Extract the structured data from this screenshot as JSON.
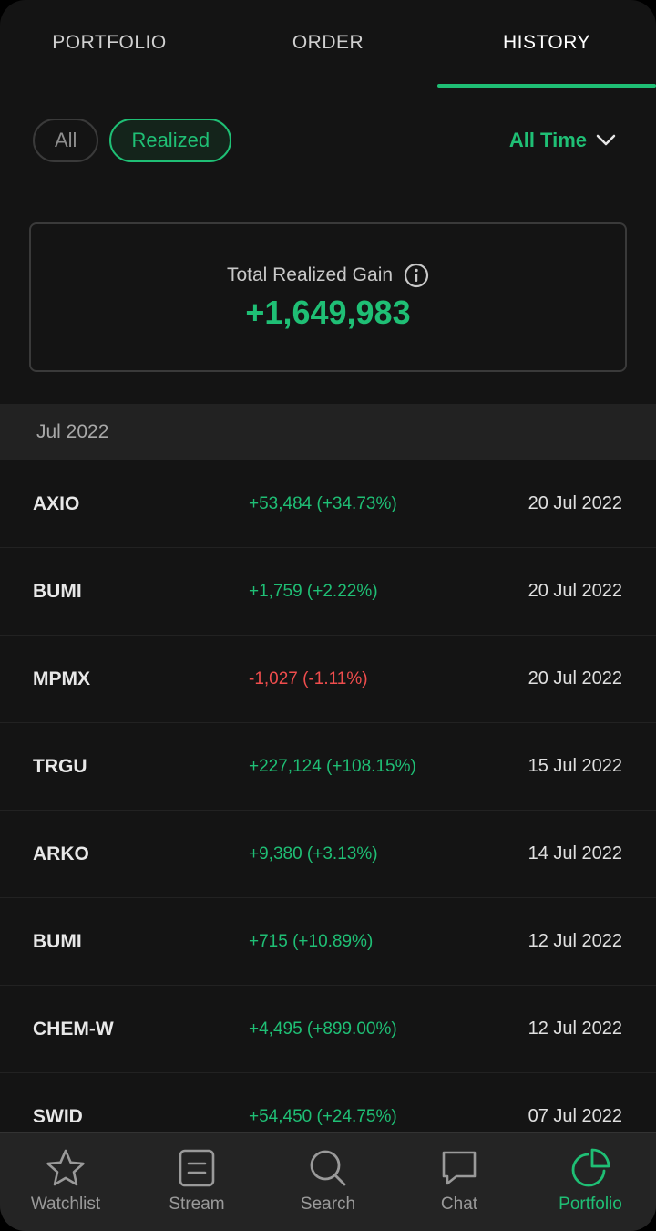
{
  "tabs": [
    {
      "label": "PORTFOLIO",
      "active": false
    },
    {
      "label": "ORDER",
      "active": false
    },
    {
      "label": "HISTORY",
      "active": true
    }
  ],
  "filters": {
    "chips": [
      {
        "label": "All",
        "selected": false
      },
      {
        "label": "Realized",
        "selected": true
      }
    ],
    "period": "All Time"
  },
  "summary": {
    "label": "Total Realized Gain",
    "value": "+1,649,983"
  },
  "section": {
    "month": "Jul 2022"
  },
  "transactions": [
    {
      "ticker": "AXIO",
      "gain": "+53,484 (+34.73%)",
      "direction": "positive",
      "date": "20 Jul 2022"
    },
    {
      "ticker": "BUMI",
      "gain": "+1,759 (+2.22%)",
      "direction": "positive",
      "date": "20 Jul 2022"
    },
    {
      "ticker": "MPMX",
      "gain": "-1,027 (-1.11%)",
      "direction": "negative",
      "date": "20 Jul 2022"
    },
    {
      "ticker": "TRGU",
      "gain": "+227,124 (+108.15%)",
      "direction": "positive",
      "date": "15 Jul 2022"
    },
    {
      "ticker": "ARKO",
      "gain": "+9,380 (+3.13%)",
      "direction": "positive",
      "date": "14 Jul 2022"
    },
    {
      "ticker": "BUMI",
      "gain": "+715 (+10.89%)",
      "direction": "positive",
      "date": "12 Jul 2022"
    },
    {
      "ticker": "CHEM-W",
      "gain": "+4,495 (+899.00%)",
      "direction": "positive",
      "date": "12 Jul 2022"
    },
    {
      "ticker": "SWID",
      "gain": "+54,450 (+24.75%)",
      "direction": "positive",
      "date": "07 Jul 2022"
    }
  ],
  "bottom_nav": [
    {
      "label": "Watchlist",
      "icon": "star-icon",
      "active": false
    },
    {
      "label": "Stream",
      "icon": "stream-icon",
      "active": false
    },
    {
      "label": "Search",
      "icon": "search-icon",
      "active": false
    },
    {
      "label": "Chat",
      "icon": "chat-icon",
      "active": false
    },
    {
      "label": "Portfolio",
      "icon": "pie-chart-icon",
      "active": true
    }
  ],
  "colors": {
    "accent": "#1fbf75",
    "negative": "#ef4d4d",
    "background": "#141414",
    "section_bg": "#222222",
    "nav_bg": "#242424"
  }
}
